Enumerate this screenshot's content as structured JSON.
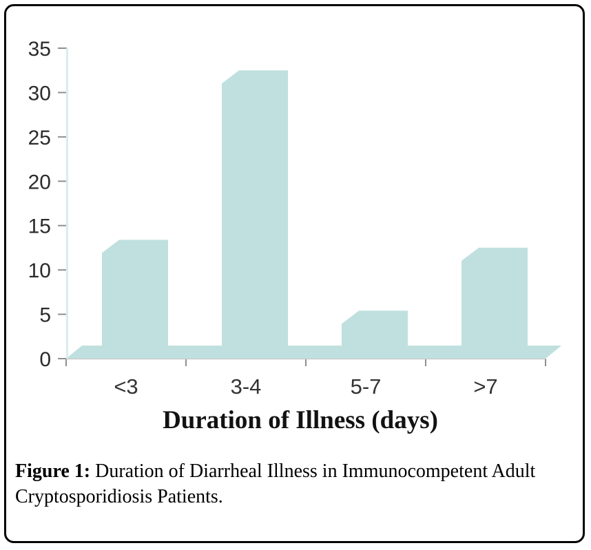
{
  "figure": {
    "caption": {
      "prefix": "Figure 1:",
      "line1_rest": " Duration of Diarrheal Illness in Immunocompetent Adult",
      "line2": "Cryptosporidiosis Patients."
    }
  },
  "chart_data": {
    "type": "bar",
    "title": "",
    "xlabel": "Duration of Illness (days)",
    "ylabel": "",
    "categories": [
      "<3",
      "3-4",
      "5-7",
      ">7"
    ],
    "values": [
      13.4,
      32.5,
      5.4,
      12.5
    ],
    "ylim": [
      0,
      35
    ],
    "yticks": [
      0,
      5,
      10,
      15,
      20,
      25,
      30,
      35
    ],
    "grid": false,
    "legend": false,
    "style": "pseudo-3d bars with chamfered top-left corners on a parallelogram floor slab",
    "colors": {
      "bar_fill": "#bfe0df",
      "y_axis_line": "#d8eceb",
      "x_axis_line": "#c6c6c6",
      "tick": "#8f8f8f",
      "y_tick_label": "#2b2b2b",
      "x_tick_label": "#333333",
      "axis_title": "#121212",
      "caption_text": "#000000",
      "border": "#000000"
    }
  }
}
